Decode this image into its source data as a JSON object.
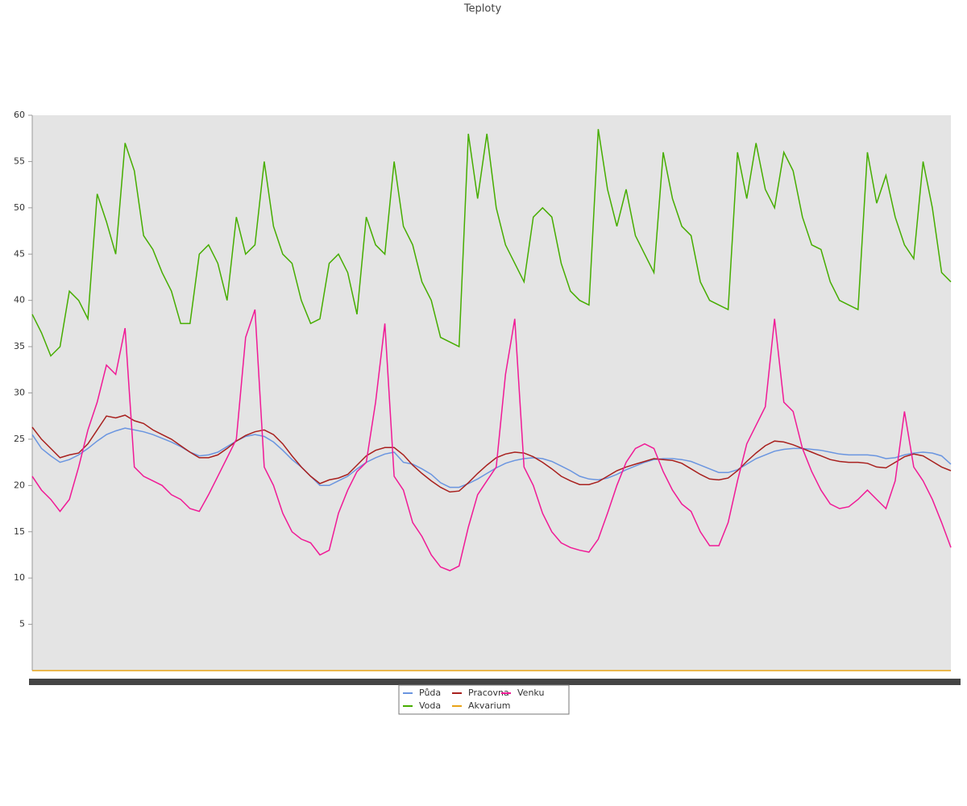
{
  "chart_data": {
    "type": "line",
    "title": "Teploty",
    "categories": [
      null,
      null,
      null,
      null,
      null,
      null,
      null,
      null,
      null,
      null,
      null,
      null,
      null,
      null,
      null,
      null,
      null,
      null,
      null,
      null,
      null,
      null,
      null,
      null,
      null,
      null,
      null,
      null,
      null,
      null,
      null,
      null,
      null,
      null,
      null,
      null,
      null,
      null,
      null,
      null,
      null,
      null,
      null,
      null,
      null,
      null,
      null,
      null,
      null,
      null,
      null,
      null,
      null,
      null,
      null,
      null,
      null,
      null,
      null,
      null,
      null,
      null,
      null,
      null,
      null,
      null,
      null,
      null,
      null,
      null,
      null,
      null,
      null,
      null,
      null,
      null,
      null,
      null,
      null,
      null,
      null,
      null,
      null,
      null,
      null,
      null,
      null,
      null,
      null,
      null,
      null,
      null,
      null,
      null,
      null,
      null,
      null,
      null,
      null,
      null
    ],
    "ylim": [
      0,
      60
    ],
    "yticks": [
      5,
      10,
      15,
      20,
      25,
      30,
      35,
      40,
      45,
      50,
      55,
      60
    ],
    "series": [
      {
        "name": "Půda",
        "color": "#6a95e0",
        "values": [
          25.5,
          24,
          23.2,
          22.5,
          22.8,
          23.3,
          24,
          24.8,
          25.5,
          25.9,
          26.2,
          26,
          25.8,
          25.5,
          25.1,
          24.7,
          24.2,
          23.6,
          23.2,
          23.3,
          23.6,
          24.2,
          24.8,
          25.3,
          25.5,
          25.3,
          24.7,
          23.8,
          22.8,
          22,
          21,
          20,
          20,
          20.5,
          21,
          21.8,
          22.5,
          23,
          23.4,
          23.6,
          22.5,
          22.3,
          21.8,
          21.2,
          20.3,
          19.8,
          19.8,
          20.2,
          20.7,
          21.3,
          21.9,
          22.4,
          22.7,
          22.9,
          23,
          22.9,
          22.6,
          22.1,
          21.6,
          21,
          20.7,
          20.6,
          20.8,
          21.2,
          21.7,
          22.1,
          22.5,
          22.8,
          22.9,
          22.9,
          22.8,
          22.6,
          22.2,
          21.8,
          21.4,
          21.4,
          21.7,
          22.3,
          22.9,
          23.3,
          23.7,
          23.9,
          24,
          24,
          23.9,
          23.8,
          23.6,
          23.4,
          23.3,
          23.3,
          23.3,
          23.2,
          22.9,
          23,
          23.3,
          23.5,
          23.6,
          23.5,
          23.2,
          22.3
        ]
      },
      {
        "name": "Voda",
        "color": "#46ad00",
        "values": [
          38.5,
          36.5,
          34,
          35,
          41,
          40,
          38,
          51.5,
          48.5,
          45,
          57,
          54,
          47,
          45.5,
          43,
          41,
          37.5,
          37.5,
          45,
          46,
          44,
          40,
          49,
          45,
          46,
          55,
          48,
          45,
          44,
          40,
          37.5,
          38,
          44,
          45,
          43,
          38.5,
          49,
          46,
          45,
          55,
          48,
          46,
          42,
          40,
          36,
          35.5,
          35,
          58,
          51,
          58,
          50,
          46,
          44,
          42,
          49,
          50,
          49,
          44,
          41,
          40,
          39.5,
          58.5,
          52,
          48,
          52,
          47,
          45,
          43,
          56,
          51,
          48,
          47,
          42,
          40,
          39.5,
          39,
          56,
          51,
          57,
          52,
          50,
          56,
          54,
          49,
          46,
          45.5,
          42,
          40,
          39.5,
          39,
          56,
          50.5,
          53.5,
          49,
          46,
          44.5,
          55,
          50,
          43,
          42
        ]
      },
      {
        "name": "Pracovna",
        "color": "#a8201e",
        "values": [
          26.3,
          25,
          24,
          23,
          23.3,
          23.5,
          24.5,
          26,
          27.5,
          27.3,
          27.6,
          27,
          26.7,
          26,
          25.5,
          25,
          24.3,
          23.6,
          23,
          23,
          23.3,
          24,
          24.8,
          25.4,
          25.8,
          26,
          25.5,
          24.5,
          23.2,
          22,
          21,
          20.2,
          20.6,
          20.8,
          21.2,
          22.2,
          23.2,
          23.8,
          24.1,
          24.1,
          23.3,
          22.2,
          21.3,
          20.5,
          19.8,
          19.3,
          19.4,
          20.3,
          21.3,
          22.2,
          23,
          23.4,
          23.6,
          23.5,
          23.1,
          22.5,
          21.8,
          21,
          20.5,
          20.1,
          20.1,
          20.4,
          21,
          21.6,
          22,
          22.3,
          22.6,
          22.9,
          22.8,
          22.7,
          22.4,
          21.8,
          21.2,
          20.7,
          20.6,
          20.8,
          21.6,
          22.6,
          23.5,
          24.3,
          24.8,
          24.7,
          24.4,
          24,
          23.6,
          23.2,
          22.8,
          22.6,
          22.5,
          22.5,
          22.4,
          22,
          21.9,
          22.5,
          23.1,
          23.4,
          23.2,
          22.6,
          22,
          21.6
        ]
      },
      {
        "name": "Akvarium",
        "color": "#e8a317",
        "values": [
          0,
          0,
          0,
          0,
          0,
          0,
          0,
          0,
          0,
          0,
          0,
          0,
          0,
          0,
          0,
          0,
          0,
          0,
          0,
          0,
          0,
          0,
          0,
          0,
          0,
          0,
          0,
          0,
          0,
          0,
          0,
          0,
          0,
          0,
          0,
          0,
          0,
          0,
          0,
          0,
          0,
          0,
          0,
          0,
          0,
          0,
          0,
          0,
          0,
          0,
          0,
          0,
          0,
          0,
          0,
          0,
          0,
          0,
          0,
          0,
          0,
          0,
          0,
          0,
          0,
          0,
          0,
          0,
          0,
          0,
          0,
          0,
          0,
          0,
          0,
          0,
          0,
          0,
          0,
          0,
          0,
          0,
          0,
          0,
          0,
          0,
          0,
          0,
          0,
          0,
          0,
          0,
          0,
          0,
          0,
          0,
          0,
          0,
          0,
          0
        ]
      },
      {
        "name": "Venku",
        "color": "#f01a96",
        "values": [
          21,
          19.5,
          18.5,
          17.2,
          18.5,
          22,
          26,
          29,
          33,
          32,
          37,
          22,
          21,
          20.5,
          20,
          19,
          18.5,
          17.5,
          17.2,
          19,
          21,
          23,
          25,
          36,
          39,
          22,
          20,
          17,
          15,
          14.2,
          13.8,
          12.5,
          13,
          17,
          19.5,
          21.5,
          22.5,
          29,
          37.5,
          21,
          19.5,
          16,
          14.5,
          12.5,
          11.2,
          10.8,
          11.3,
          15.5,
          19,
          20.5,
          22,
          32,
          38,
          22,
          20,
          17,
          15,
          13.8,
          13.3,
          13,
          12.8,
          14.2,
          17,
          20,
          22.5,
          24,
          24.5,
          24,
          21.5,
          19.5,
          18,
          17.2,
          15,
          13.5,
          13.5,
          16,
          20.5,
          24.5,
          26.5,
          28.5,
          38,
          29,
          28,
          24,
          21.5,
          19.5,
          18,
          17.5,
          17.7,
          18.5,
          19.5,
          18.5,
          17.5,
          20.5,
          28,
          22,
          20.5,
          18.5,
          16,
          13.3
        ]
      }
    ]
  }
}
